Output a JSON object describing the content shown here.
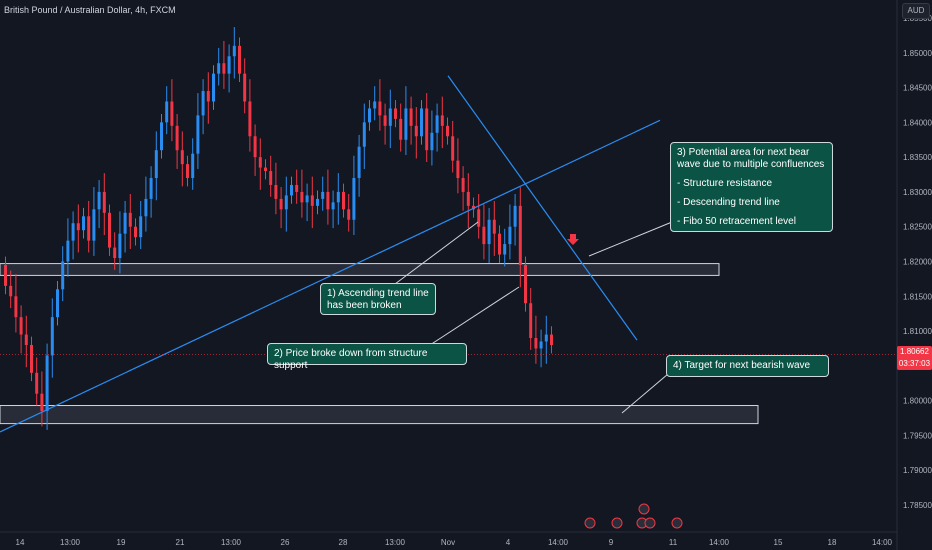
{
  "header": {
    "title": "British Pound / Australian Dollar, 4h, FXCM",
    "currency": "AUD"
  },
  "price_tag": {
    "price": "1.80662",
    "countdown": "03:37:03"
  },
  "annotations": {
    "note1": [
      "1) Ascending trend line",
      "has been broken"
    ],
    "note2": "2) Price broke down from structure support",
    "note3": [
      "3) Potential area for next bear",
      "wave due to multiple confluences",
      "- Structure resistance",
      "- Descending trend line",
      "- Fibo 50 retracement level"
    ],
    "note4": "4) Target for next bearish wave"
  },
  "colors": {
    "background": "#131722",
    "bull": "#2a8cf0",
    "bear": "#f23645",
    "trendline": "#2a8cf0",
    "note_bg": "#0b5345",
    "zone": "#3a3e4a"
  },
  "chart_data": {
    "type": "candlestick",
    "title": "British Pound / Australian Dollar, 4h, FXCM",
    "y_axis": {
      "unit": "AUD",
      "range": [
        1.7835,
        1.8556
      ],
      "ticks": [
        "1.85500",
        "1.85000",
        "1.84500",
        "1.84000",
        "1.83500",
        "1.83000",
        "1.82500",
        "1.82000",
        "1.81500",
        "1.81000",
        "1.80500",
        "1.80000",
        "1.79500",
        "1.79000",
        "1.78500"
      ]
    },
    "x_axis": {
      "ticks": [
        "14",
        "13:00",
        "19",
        "21",
        "13:00",
        "26",
        "28",
        "13:00",
        "Nov",
        "4",
        "14:00",
        "9",
        "11",
        "14:00",
        "15",
        "18",
        "14:00"
      ]
    },
    "last_price": 1.80662,
    "grid": false,
    "closes": [
      1.8165,
      1.815,
      1.812,
      1.8095,
      1.808,
      1.804,
      1.801,
      1.7985,
      1.8065,
      1.812,
      1.816,
      1.82,
      1.823,
      1.8255,
      1.8245,
      1.8265,
      1.823,
      1.8275,
      1.83,
      1.827,
      1.822,
      1.8205,
      1.824,
      1.827,
      1.825,
      1.8235,
      1.8265,
      1.829,
      1.832,
      1.836,
      1.84,
      1.843,
      1.8395,
      1.836,
      1.834,
      1.832,
      1.8355,
      1.841,
      1.8445,
      1.843,
      1.847,
      1.8485,
      1.847,
      1.8495,
      1.851,
      1.847,
      1.843,
      1.838,
      1.835,
      1.8335,
      1.833,
      1.831,
      1.829,
      1.8275,
      1.8295,
      1.831,
      1.83,
      1.8285,
      1.8295,
      1.828,
      1.829,
      1.83,
      1.8275,
      1.8285,
      1.83,
      1.8275,
      1.826,
      1.832,
      1.8365,
      1.84,
      1.842,
      1.843,
      1.841,
      1.8395,
      1.842,
      1.8405,
      1.8375,
      1.842,
      1.8395,
      1.838,
      1.842,
      1.836,
      1.8385,
      1.841,
      1.8395,
      1.838,
      1.8345,
      1.832,
      1.83,
      1.828,
      1.8275,
      1.825,
      1.8225,
      1.826,
      1.824,
      1.821,
      1.8225,
      1.825,
      1.828,
      1.8195,
      1.814,
      1.809,
      1.8075,
      1.8085,
      1.8095,
      1.808
    ]
  }
}
